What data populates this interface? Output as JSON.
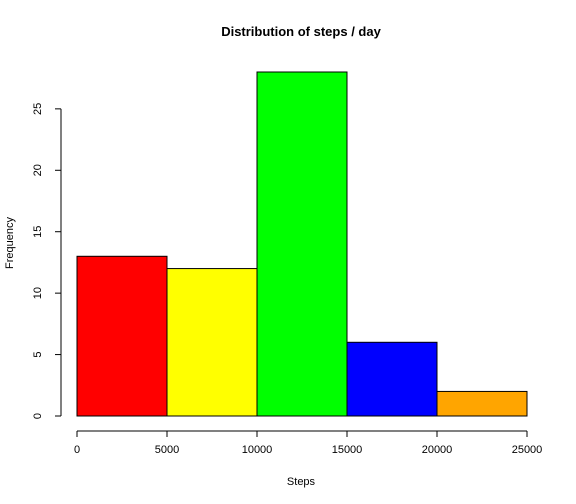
{
  "chart_data": {
    "type": "bar",
    "title": "Distribution of steps / day",
    "xlabel": "Steps",
    "ylabel": "Frequency",
    "bins": [
      {
        "from": 0,
        "to": 5000,
        "value": 13,
        "color": "#ff0000"
      },
      {
        "from": 5000,
        "to": 10000,
        "value": 12,
        "color": "#ffff00"
      },
      {
        "from": 10000,
        "to": 15000,
        "value": 28,
        "color": "#00ff00"
      },
      {
        "from": 15000,
        "to": 20000,
        "value": 6,
        "color": "#0000ff"
      },
      {
        "from": 20000,
        "to": 25000,
        "value": 2,
        "color": "#ffa500"
      }
    ],
    "xlim": [
      0,
      25000
    ],
    "ylim": [
      0,
      28
    ],
    "xticks": [
      "0",
      "5000",
      "10000",
      "15000",
      "20000",
      "25000"
    ],
    "yticks": [
      "0",
      "5",
      "10",
      "15",
      "20",
      "25"
    ],
    "grid": false
  }
}
